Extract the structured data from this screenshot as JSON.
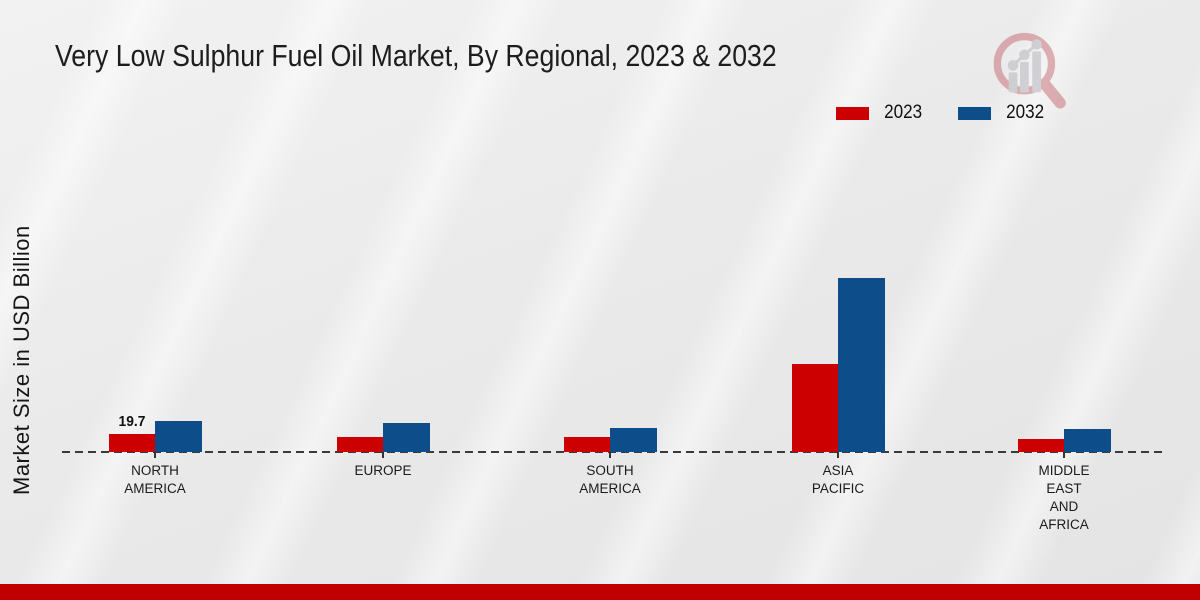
{
  "title": "Very Low Sulphur Fuel Oil Market, By Regional, 2023 & 2032",
  "y_axis_label": "Market Size in USD Billion",
  "colors": {
    "series_2023": "#cc0001",
    "series_2032": "#0d4d8a",
    "footer_band": "#c00000",
    "baseline": "#3a3a3a"
  },
  "logo_icon": "magnifier-bar-chart-logo",
  "chart_data": {
    "type": "bar",
    "title": "Very Low Sulphur Fuel Oil Market, By Regional, 2023 & 2032",
    "xlabel": "",
    "ylabel": "Market Size in USD Billion",
    "categories": [
      "NORTH AMERICA",
      "EUROPE",
      "SOUTH AMERICA",
      "ASIA PACIFIC",
      "MIDDLE EAST AND AFRICA"
    ],
    "series": [
      {
        "name": "2023",
        "color": "#cc0001",
        "values": [
          19.7,
          16.4,
          15.9,
          96.0,
          14.2
        ]
      },
      {
        "name": "2032",
        "color": "#0d4d8a",
        "values": [
          33.9,
          31.7,
          25.8,
          190.0,
          24.9
        ]
      }
    ],
    "data_labels": [
      {
        "series": "2023",
        "category": "NORTH AMERICA",
        "text": "19.7"
      }
    ],
    "ylim": [
      0,
      200
    ],
    "grid": false,
    "baseline_style": "dashed",
    "legend_position": "top-right"
  }
}
